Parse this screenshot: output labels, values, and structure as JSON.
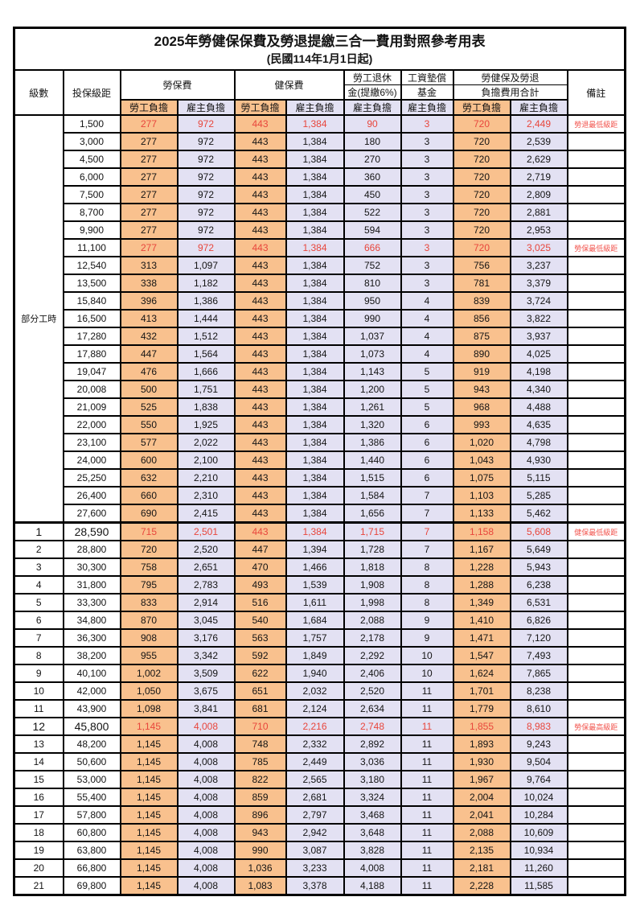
{
  "title": "2025年勞健保保費及勞退提繳三合一費用對照參考用表",
  "subtitle": "(民國114年1月1日起)",
  "header": {
    "level": "級數",
    "bracket": "投保級距",
    "labor_ins": "勞保費",
    "health_ins": "健保費",
    "pension_line1": "勞工退休",
    "pension_line2": "金(提繳6%)",
    "wage_fund_line1": "工資墊償",
    "wage_fund_line2": "基金",
    "total_line1": "勞健保及勞退",
    "total_line2": "負擔費用合計",
    "note": "備註",
    "employee": "勞工負擔",
    "employer": "雇主負擔"
  },
  "part_time_label": "部分工時",
  "colors": {
    "employee_bg": "#f9c18e",
    "employer_bg": "#e3e1f3",
    "highlight_text": "#e8463c",
    "note_text": "#f2554e",
    "border": "#000000"
  },
  "columns_order": [
    "level",
    "bracket",
    "labor_emp",
    "labor_er",
    "health_emp",
    "health_er",
    "pension_er",
    "wage_fund_er",
    "total_emp",
    "total_er",
    "note",
    "is_red"
  ],
  "rows": [
    [
      "",
      "1,500",
      "277",
      "972",
      "443",
      "1,384",
      "90",
      "3",
      "720",
      "2,449",
      "勞退最低級距",
      1
    ],
    [
      "",
      "3,000",
      "277",
      "972",
      "443",
      "1,384",
      "180",
      "3",
      "720",
      "2,539",
      "",
      0
    ],
    [
      "",
      "4,500",
      "277",
      "972",
      "443",
      "1,384",
      "270",
      "3",
      "720",
      "2,629",
      "",
      0
    ],
    [
      "",
      "6,000",
      "277",
      "972",
      "443",
      "1,384",
      "360",
      "3",
      "720",
      "2,719",
      "",
      0
    ],
    [
      "",
      "7,500",
      "277",
      "972",
      "443",
      "1,384",
      "450",
      "3",
      "720",
      "2,809",
      "",
      0
    ],
    [
      "",
      "8,700",
      "277",
      "972",
      "443",
      "1,384",
      "522",
      "3",
      "720",
      "2,881",
      "",
      0
    ],
    [
      "",
      "9,900",
      "277",
      "972",
      "443",
      "1,384",
      "594",
      "3",
      "720",
      "2,953",
      "",
      0
    ],
    [
      "",
      "11,100",
      "277",
      "972",
      "443",
      "1,384",
      "666",
      "3",
      "720",
      "3,025",
      "勞保最低級距",
      1
    ],
    [
      "",
      "12,540",
      "313",
      "1,097",
      "443",
      "1,384",
      "752",
      "3",
      "756",
      "3,237",
      "",
      0
    ],
    [
      "",
      "13,500",
      "338",
      "1,182",
      "443",
      "1,384",
      "810",
      "3",
      "781",
      "3,379",
      "",
      0
    ],
    [
      "",
      "15,840",
      "396",
      "1,386",
      "443",
      "1,384",
      "950",
      "4",
      "839",
      "3,724",
      "",
      0
    ],
    [
      "",
      "16,500",
      "413",
      "1,444",
      "443",
      "1,384",
      "990",
      "4",
      "856",
      "3,822",
      "",
      0
    ],
    [
      "",
      "17,280",
      "432",
      "1,512",
      "443",
      "1,384",
      "1,037",
      "4",
      "875",
      "3,937",
      "",
      0
    ],
    [
      "",
      "17,880",
      "447",
      "1,564",
      "443",
      "1,384",
      "1,073",
      "4",
      "890",
      "4,025",
      "",
      0
    ],
    [
      "",
      "19,047",
      "476",
      "1,666",
      "443",
      "1,384",
      "1,143",
      "5",
      "919",
      "4,198",
      "",
      0
    ],
    [
      "",
      "20,008",
      "500",
      "1,751",
      "443",
      "1,384",
      "1,200",
      "5",
      "943",
      "4,340",
      "",
      0
    ],
    [
      "",
      "21,009",
      "525",
      "1,838",
      "443",
      "1,384",
      "1,261",
      "5",
      "968",
      "4,488",
      "",
      0
    ],
    [
      "",
      "22,000",
      "550",
      "1,925",
      "443",
      "1,384",
      "1,320",
      "6",
      "993",
      "4,635",
      "",
      0
    ],
    [
      "",
      "23,100",
      "577",
      "2,022",
      "443",
      "1,384",
      "1,386",
      "6",
      "1,020",
      "4,798",
      "",
      0
    ],
    [
      "",
      "24,000",
      "600",
      "2,100",
      "443",
      "1,384",
      "1,440",
      "6",
      "1,043",
      "4,930",
      "",
      0
    ],
    [
      "",
      "25,250",
      "632",
      "2,210",
      "443",
      "1,384",
      "1,515",
      "6",
      "1,075",
      "5,115",
      "",
      0
    ],
    [
      "",
      "26,400",
      "660",
      "2,310",
      "443",
      "1,384",
      "1,584",
      "7",
      "1,103",
      "5,285",
      "",
      0
    ],
    [
      "",
      "27,600",
      "690",
      "2,415",
      "443",
      "1,384",
      "1,656",
      "7",
      "1,133",
      "5,462",
      "",
      0
    ],
    [
      "1",
      "28,590",
      "715",
      "2,501",
      "443",
      "1,384",
      "1,715",
      "7",
      "1,158",
      "5,608",
      "健保最低級距",
      1
    ],
    [
      "2",
      "28,800",
      "720",
      "2,520",
      "447",
      "1,394",
      "1,728",
      "7",
      "1,167",
      "5,649",
      "",
      0
    ],
    [
      "3",
      "30,300",
      "758",
      "2,651",
      "470",
      "1,466",
      "1,818",
      "8",
      "1,228",
      "5,943",
      "",
      0
    ],
    [
      "4",
      "31,800",
      "795",
      "2,783",
      "493",
      "1,539",
      "1,908",
      "8",
      "1,288",
      "6,238",
      "",
      0
    ],
    [
      "5",
      "33,300",
      "833",
      "2,914",
      "516",
      "1,611",
      "1,998",
      "8",
      "1,349",
      "6,531",
      "",
      0
    ],
    [
      "6",
      "34,800",
      "870",
      "3,045",
      "540",
      "1,684",
      "2,088",
      "9",
      "1,410",
      "6,826",
      "",
      0
    ],
    [
      "7",
      "36,300",
      "908",
      "3,176",
      "563",
      "1,757",
      "2,178",
      "9",
      "1,471",
      "7,120",
      "",
      0
    ],
    [
      "8",
      "38,200",
      "955",
      "3,342",
      "592",
      "1,849",
      "2,292",
      "10",
      "1,547",
      "7,493",
      "",
      0
    ],
    [
      "9",
      "40,100",
      "1,002",
      "3,509",
      "622",
      "1,940",
      "2,406",
      "10",
      "1,624",
      "7,865",
      "",
      0
    ],
    [
      "10",
      "42,000",
      "1,050",
      "3,675",
      "651",
      "2,032",
      "2,520",
      "11",
      "1,701",
      "8,238",
      "",
      0
    ],
    [
      "11",
      "43,900",
      "1,098",
      "3,841",
      "681",
      "2,124",
      "2,634",
      "11",
      "1,779",
      "8,610",
      "",
      0
    ],
    [
      "12",
      "45,800",
      "1,145",
      "4,008",
      "710",
      "2,216",
      "2,748",
      "11",
      "1,855",
      "8,983",
      "勞保最高級距",
      1
    ],
    [
      "13",
      "48,200",
      "1,145",
      "4,008",
      "748",
      "2,332",
      "2,892",
      "11",
      "1,893",
      "9,243",
      "",
      0
    ],
    [
      "14",
      "50,600",
      "1,145",
      "4,008",
      "785",
      "2,449",
      "3,036",
      "11",
      "1,930",
      "9,504",
      "",
      0
    ],
    [
      "15",
      "53,000",
      "1,145",
      "4,008",
      "822",
      "2,565",
      "3,180",
      "11",
      "1,967",
      "9,764",
      "",
      0
    ],
    [
      "16",
      "55,400",
      "1,145",
      "4,008",
      "859",
      "2,681",
      "3,324",
      "11",
      "2,004",
      "10,024",
      "",
      0
    ],
    [
      "17",
      "57,800",
      "1,145",
      "4,008",
      "896",
      "2,797",
      "3,468",
      "11",
      "2,041",
      "10,284",
      "",
      0
    ],
    [
      "18",
      "60,800",
      "1,145",
      "4,008",
      "943",
      "2,942",
      "3,648",
      "11",
      "2,088",
      "10,609",
      "",
      0
    ],
    [
      "19",
      "63,800",
      "1,145",
      "4,008",
      "990",
      "3,087",
      "3,828",
      "11",
      "2,135",
      "10,934",
      "",
      0
    ],
    [
      "20",
      "66,800",
      "1,145",
      "4,008",
      "1,036",
      "3,233",
      "4,008",
      "11",
      "2,181",
      "11,260",
      "",
      0
    ],
    [
      "21",
      "69,800",
      "1,145",
      "4,008",
      "1,083",
      "3,378",
      "4,188",
      "11",
      "2,228",
      "11,585",
      "",
      0
    ]
  ]
}
